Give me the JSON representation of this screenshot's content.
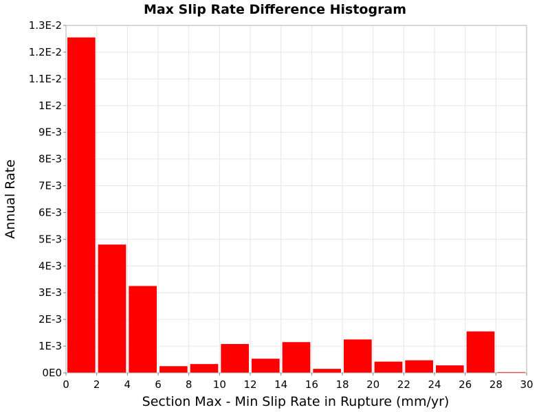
{
  "chart_data": {
    "type": "bar",
    "title": "Max Slip Rate Difference Histogram",
    "xlabel": "Section Max - Min Slip Rate in Rupture (mm/yr)",
    "ylabel": "Annual Rate",
    "xlim": [
      0,
      30
    ],
    "ylim": [
      0,
      0.013
    ],
    "grid": true,
    "x_ticks": [
      "0",
      "2",
      "4",
      "6",
      "8",
      "10",
      "12",
      "14",
      "16",
      "18",
      "20",
      "22",
      "24",
      "26",
      "28",
      "30"
    ],
    "y_ticks": [
      "0E0",
      "1E-3",
      "2E-3",
      "3E-3",
      "4E-3",
      "5E-3",
      "6E-3",
      "7E-3",
      "8E-3",
      "9E-3",
      "1E-2",
      "1.1E-2",
      "1.2E-2",
      "1.3E-2"
    ],
    "bin_width": 2,
    "bins": [
      {
        "x_start": 0,
        "value": 0.01255
      },
      {
        "x_start": 2,
        "value": 0.0048
      },
      {
        "x_start": 4,
        "value": 0.00325
      },
      {
        "x_start": 6,
        "value": 0.00025
      },
      {
        "x_start": 8,
        "value": 0.00033
      },
      {
        "x_start": 10,
        "value": 0.00108
      },
      {
        "x_start": 12,
        "value": 0.00053
      },
      {
        "x_start": 14,
        "value": 0.00115
      },
      {
        "x_start": 16,
        "value": 0.00015
      },
      {
        "x_start": 18,
        "value": 0.00125
      },
      {
        "x_start": 20,
        "value": 0.00042
      },
      {
        "x_start": 22,
        "value": 0.00047
      },
      {
        "x_start": 24,
        "value": 0.00028
      },
      {
        "x_start": 26,
        "value": 0.00155
      },
      {
        "x_start": 28,
        "value": 3e-05
      }
    ],
    "bar_color": "#ff0000",
    "grid_color": "#e6e6e6",
    "plot_border_color": "#b0b0b0"
  }
}
